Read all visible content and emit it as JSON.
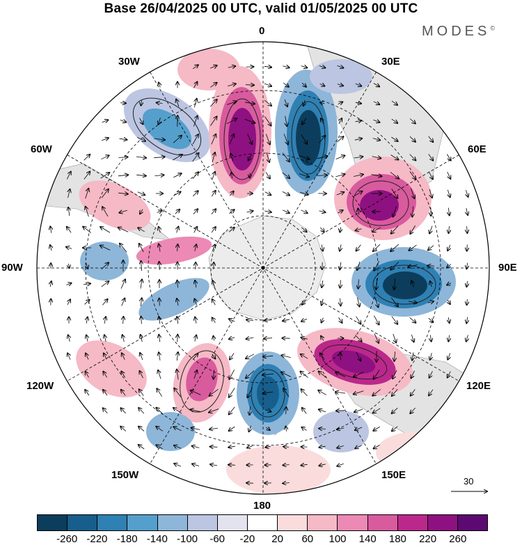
{
  "title": "Base 26/04/2025 00 UTC, valid 01/05/2025 00 UTC",
  "brand": "MODES",
  "brand_mark": "©",
  "longitude_labels": {
    "lon_0": "0",
    "lon_30e": "30E",
    "lon_60e": "60E",
    "lon_90e": "90E",
    "lon_120e": "120E",
    "lon_150e": "150E",
    "lon_180": "180",
    "lon_150w": "150W",
    "lon_120w": "120W",
    "lon_90w": "90W",
    "lon_60w": "60W",
    "lon_30w": "30W"
  },
  "wind_reference": "30",
  "colorbar": {
    "colors": [
      "#0d3d5c",
      "#175e8c",
      "#2f80b3",
      "#559fcc",
      "#8db6d9",
      "#bcc6e2",
      "#e3e3f0",
      "#ffffff",
      "#fbdcdc",
      "#f6b9c6",
      "#ec89b4",
      "#d85b9e",
      "#bb288c",
      "#8e1181",
      "#5c0a72"
    ],
    "tick_labels": [
      "-260",
      "-220",
      "-180",
      "-140",
      "-100",
      "-60",
      "-20",
      "20",
      "60",
      "100",
      "140",
      "180",
      "220",
      "260"
    ]
  },
  "map_colors": {
    "land": "#e3e3e3",
    "antarctica": "#ececec"
  }
}
